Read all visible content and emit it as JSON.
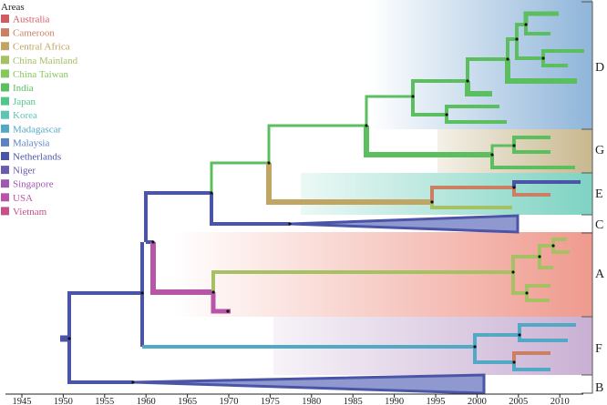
{
  "legend": {
    "title": "Areas",
    "items": [
      {
        "label": "Australia",
        "color": "#cf5b63"
      },
      {
        "label": "Cameroon",
        "color": "#cb8063"
      },
      {
        "label": "Central Africa",
        "color": "#c1a663"
      },
      {
        "label": "China Mainland",
        "color": "#a6c064"
      },
      {
        "label": "China Taiwan",
        "color": "#86c75e"
      },
      {
        "label": "India",
        "color": "#5bbf5f"
      },
      {
        "label": "Japan",
        "color": "#52c58a"
      },
      {
        "label": "Korea",
        "color": "#5ec4b4"
      },
      {
        "label": "Madagascar",
        "color": "#52a9c5"
      },
      {
        "label": "Malaysia",
        "color": "#5d82c3"
      },
      {
        "label": "Netherlands",
        "color": "#4b55a7"
      },
      {
        "label": "Niger",
        "color": "#6c5ab1"
      },
      {
        "label": "Singapore",
        "color": "#9e58b1"
      },
      {
        "label": "USA",
        "color": "#b955a8"
      },
      {
        "label": "Vietnam",
        "color": "#c45187"
      }
    ]
  },
  "axis": {
    "ticks": [
      "1945",
      "1950",
      "1955",
      "1960",
      "1965",
      "1970",
      "1975",
      "1980",
      "1985",
      "1990",
      "1995",
      "2000",
      "2005",
      "2010"
    ]
  },
  "clades": [
    {
      "label": "D",
      "color": "#8fb5d9"
    },
    {
      "label": "G",
      "color": "#c8b88e"
    },
    {
      "label": "E",
      "color": "#7ed3c2"
    },
    {
      "label": "C",
      "color": "#ffffff"
    },
    {
      "label": "A",
      "color": "#ef9a8e"
    },
    {
      "label": "F",
      "color": "#c9b0d3"
    },
    {
      "label": "B",
      "color": "#ffffff"
    }
  ],
  "branch_colors": {
    "green": "#5bbf5f",
    "light_green": "#a6c064",
    "tan": "#c1a663",
    "navy": "#4b55a7",
    "purple": "#b955a8",
    "teal": "#52a9c5",
    "brown": "#cb8063"
  }
}
